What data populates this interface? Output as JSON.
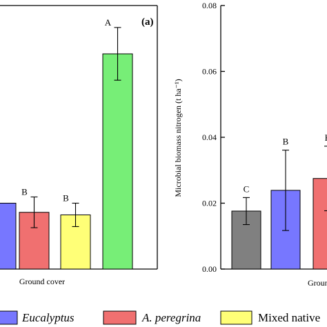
{
  "chart_data": [
    {
      "type": "bar",
      "panel_label": "(a)",
      "xlabel": "Ground cover",
      "ylabel": "",
      "categories": [
        "",
        "",
        "",
        ""
      ],
      "series": [
        {
          "values": [
            0.018,
            0.0155,
            0.0148,
            0.0588
          ]
        }
      ],
      "errors": [
        null,
        0.0042,
        0.0032,
        0.0072
      ],
      "letters": [
        "",
        "B",
        "B",
        "A"
      ],
      "colors": [
        "#7777ff",
        "#f07070",
        "#ffff77",
        "#77ee77"
      ],
      "ylim": [
        0,
        0.072
      ]
    },
    {
      "type": "bar",
      "xlabel": "Groun",
      "ylabel": "Microbial biomass nitrogen (t ha⁻¹)",
      "categories": [
        "",
        "",
        ""
      ],
      "series": [
        {
          "values": [
            0.0176,
            0.0239,
            0.0275
          ]
        }
      ],
      "errors": [
        0.0041,
        0.0122,
        0.0098
      ],
      "letters": [
        "C",
        "B",
        "B"
      ],
      "colors": [
        "#808080",
        "#7777ff",
        "#f07070"
      ],
      "ylim": [
        0,
        0.08
      ],
      "yticks": [
        0,
        0.02,
        0.04,
        0.06,
        0.08
      ],
      "ytick_labels": [
        "0.00",
        "0.02",
        "0.04",
        "0.06",
        "0.08"
      ]
    }
  ],
  "legend": {
    "placement": "bottom",
    "entries": [
      {
        "label": "Eucalyptus",
        "color": "#7777ff",
        "italic": true
      },
      {
        "label": "A. peregrina",
        "color": "#f07070",
        "italic": true
      },
      {
        "label": "Mixed native",
        "color": "#ffff77",
        "italic": false
      }
    ]
  }
}
